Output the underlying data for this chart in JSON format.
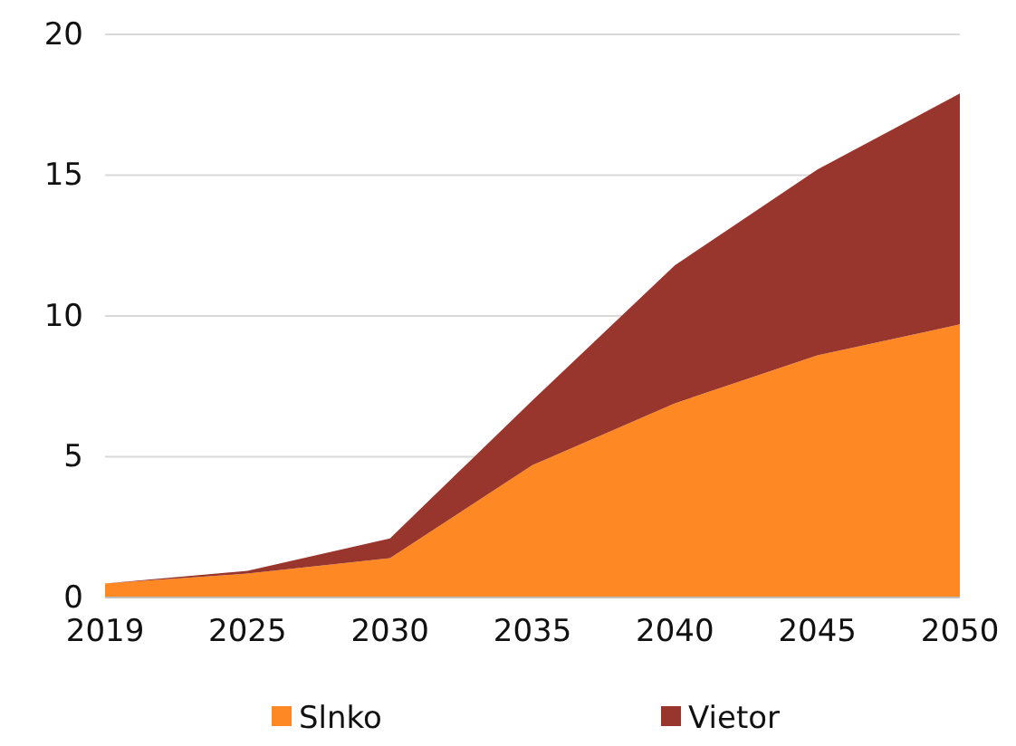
{
  "chart_data": {
    "type": "area",
    "stacked": true,
    "categories": [
      "2019",
      "2025",
      "2030",
      "2035",
      "2040",
      "2045",
      "2050"
    ],
    "series": [
      {
        "name": "Slnko",
        "color": "#fd8824",
        "values": [
          0.5,
          0.85,
          1.4,
          4.7,
          6.9,
          8.6,
          9.7
        ]
      },
      {
        "name": "Vietor",
        "color": "#98352c",
        "values": [
          0,
          0.1,
          0.7,
          2.3,
          4.9,
          6.6,
          8.2
        ]
      }
    ],
    "ylim": [
      0,
      20
    ],
    "yticks": [
      0,
      5,
      10,
      15,
      20
    ],
    "grid": "y",
    "legend": "bottom"
  }
}
